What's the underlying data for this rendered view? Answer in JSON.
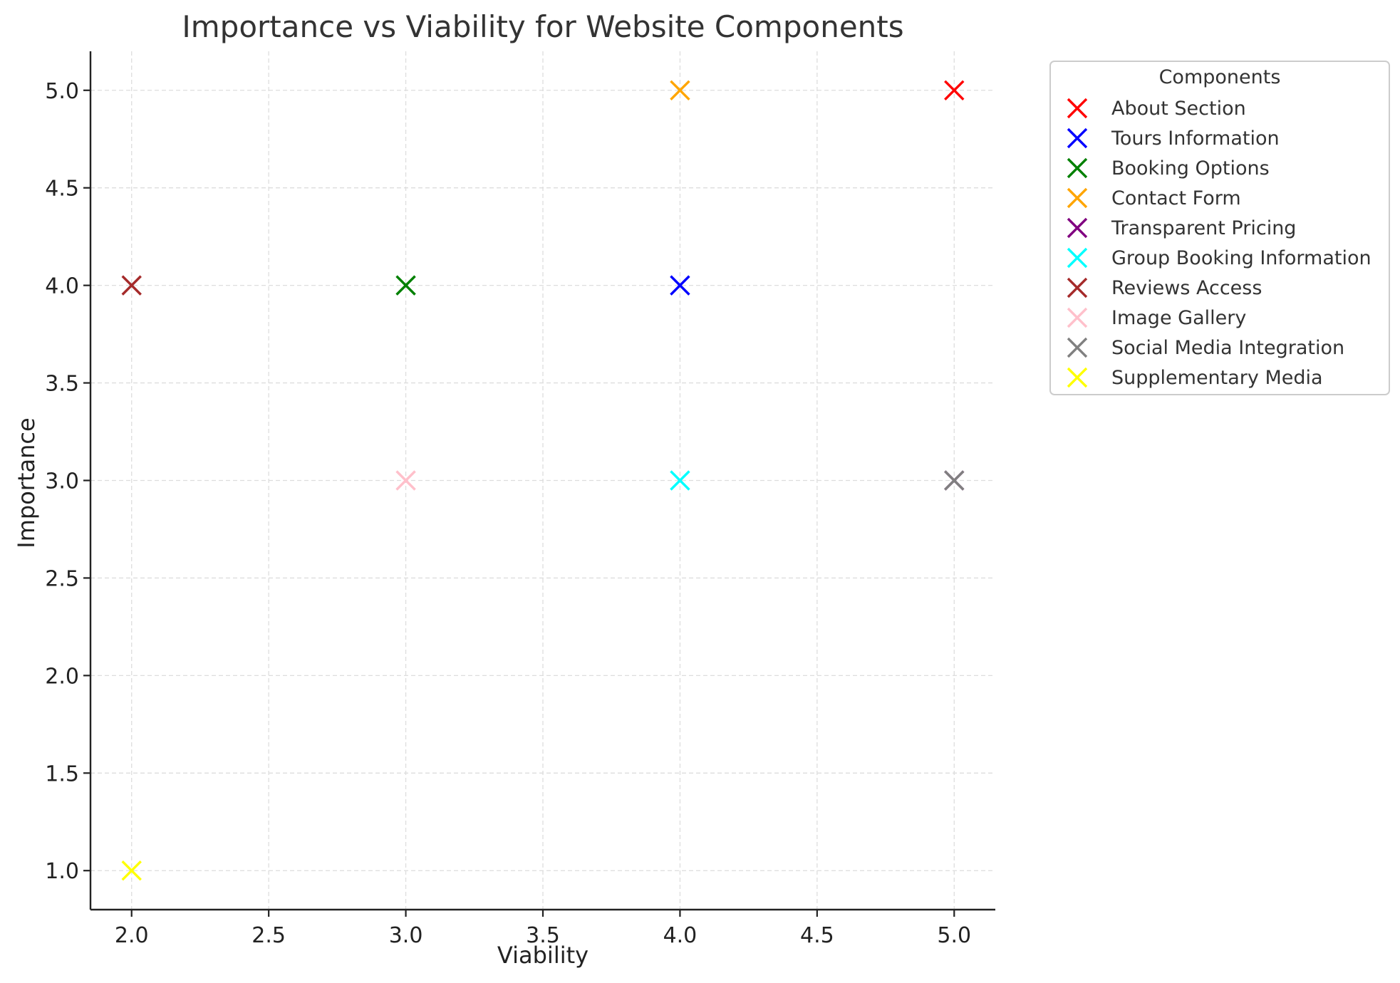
{
  "chart_data": {
    "type": "scatter",
    "title": "Importance vs Viability for Website Components",
    "xlabel": "Viability",
    "ylabel": "Importance",
    "xlim": [
      1.85,
      5.15
    ],
    "ylim": [
      0.8,
      5.2
    ],
    "xticks": [
      2.0,
      2.5,
      3.0,
      3.5,
      4.0,
      4.5,
      5.0
    ],
    "yticks": [
      1.0,
      1.5,
      2.0,
      2.5,
      3.0,
      3.5,
      4.0,
      4.5,
      5.0
    ],
    "xtick_labels": [
      "2.0",
      "2.5",
      "3.0",
      "3.5",
      "4.0",
      "4.5",
      "5.0"
    ],
    "ytick_labels": [
      "1.0",
      "1.5",
      "2.0",
      "2.5",
      "3.0",
      "3.5",
      "4.0",
      "4.5",
      "5.0"
    ],
    "grid": true,
    "marker": "x",
    "legend": {
      "title": "Components",
      "placement": "outside-top-right"
    },
    "series": [
      {
        "name": "About Section",
        "color": "#ff0000",
        "x": 5,
        "y": 5
      },
      {
        "name": "Tours Information",
        "color": "#0000ff",
        "x": 4,
        "y": 4
      },
      {
        "name": "Booking Options",
        "color": "#008000",
        "x": 3,
        "y": 4
      },
      {
        "name": "Contact Form",
        "color": "#ffa500",
        "x": 4,
        "y": 5
      },
      {
        "name": "Transparent Pricing",
        "color": "#800080",
        "x": 5,
        "y": 3
      },
      {
        "name": "Group Booking Information",
        "color": "#00ffff",
        "x": 4,
        "y": 3
      },
      {
        "name": "Reviews Access",
        "color": "#a52a2a",
        "x": 2,
        "y": 4
      },
      {
        "name": "Image Gallery",
        "color": "#ffc0cb",
        "x": 3,
        "y": 3
      },
      {
        "name": "Social Media Integration",
        "color": "#808080",
        "x": 5,
        "y": 3
      },
      {
        "name": "Supplementary Media",
        "color": "#ffff00",
        "x": 2,
        "y": 1
      }
    ]
  }
}
